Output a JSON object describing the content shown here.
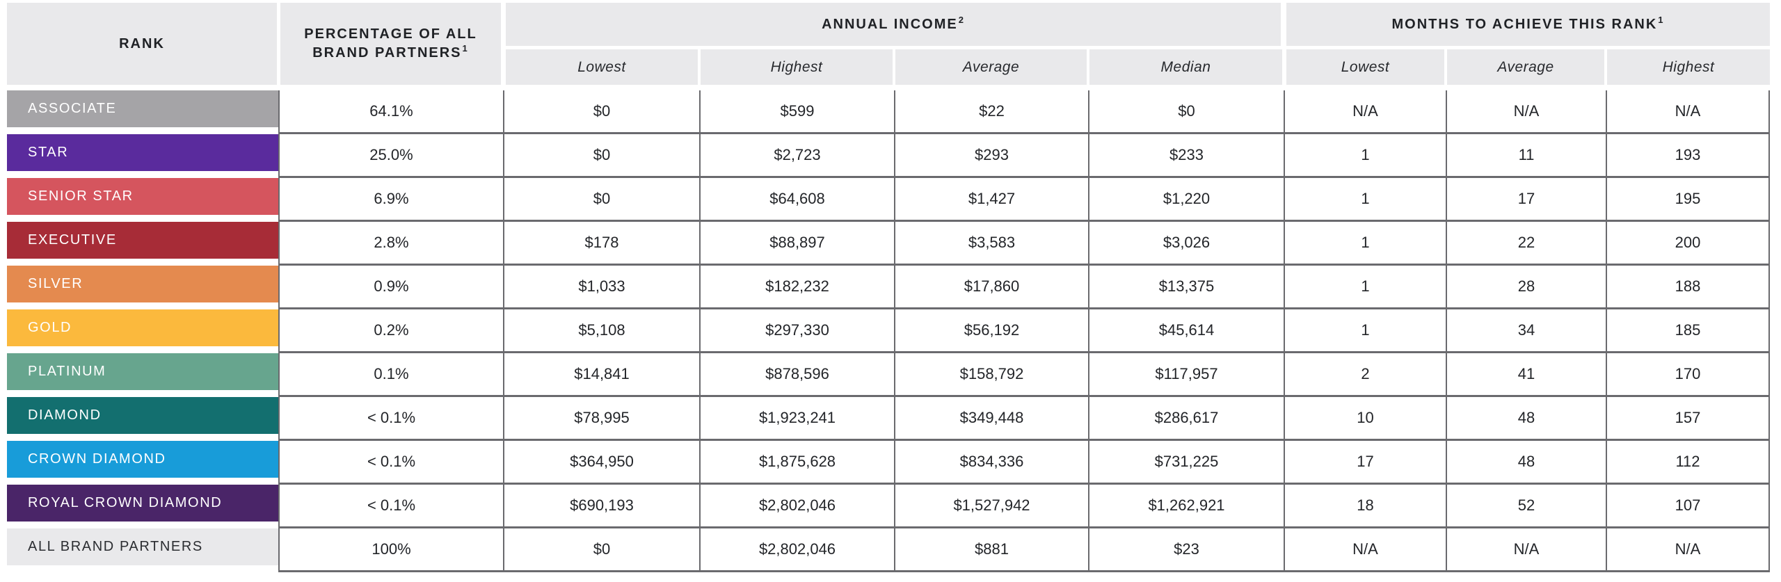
{
  "header": {
    "rank_label": "RANK",
    "percentage_label": "PERCENTAGE OF ALL BRAND PARTNERS",
    "percentage_sup": "1",
    "annual_income_label": "ANNUAL INCOME",
    "annual_income_sup": "2",
    "annual_income_sub": {
      "lowest": "Lowest",
      "highest": "Highest",
      "average": "Average",
      "median": "Median"
    },
    "months_label": "MONTHS TO ACHIEVE THIS RANK",
    "months_sup": "1",
    "months_sub": {
      "lowest": "Lowest",
      "average": "Average",
      "highest": "Highest"
    }
  },
  "colors": {
    "header_bg": "#e9e9eb",
    "grid_line": "#6a6a6e",
    "data_text": "#232529"
  },
  "rows": [
    {
      "rank": "ASSOCIATE",
      "color": "#a5a4a7",
      "label_color": "#ffffff",
      "percentage": "64.1%",
      "income_lowest": "$0",
      "income_highest": "$599",
      "income_average": "$22",
      "income_median": "$0",
      "months_lowest": "N/A",
      "months_average": "N/A",
      "months_highest": "N/A"
    },
    {
      "rank": "STAR",
      "color": "#5a2b9d",
      "label_color": "#ffffff",
      "percentage": "25.0%",
      "income_lowest": "$0",
      "income_highest": "$2,723",
      "income_average": "$293",
      "income_median": "$233",
      "months_lowest": "1",
      "months_average": "11",
      "months_highest": "193"
    },
    {
      "rank": "SENIOR STAR",
      "color": "#d5555e",
      "label_color": "#ffffff",
      "percentage": "6.9%",
      "income_lowest": "$0",
      "income_highest": "$64,608",
      "income_average": "$1,427",
      "income_median": "$1,220",
      "months_lowest": "1",
      "months_average": "17",
      "months_highest": "195"
    },
    {
      "rank": "EXECUTIVE",
      "color": "#a72c37",
      "label_color": "#ffffff",
      "percentage": "2.8%",
      "income_lowest": "$178",
      "income_highest": "$88,897",
      "income_average": "$3,583",
      "income_median": "$3,026",
      "months_lowest": "1",
      "months_average": "22",
      "months_highest": "200"
    },
    {
      "rank": "SILVER",
      "color": "#e48a4f",
      "label_color": "#ffffff",
      "percentage": "0.9%",
      "income_lowest": "$1,033",
      "income_highest": "$182,232",
      "income_average": "$17,860",
      "income_median": "$13,375",
      "months_lowest": "1",
      "months_average": "28",
      "months_highest": "188"
    },
    {
      "rank": "GOLD",
      "color": "#fbb93d",
      "label_color": "#ffffff",
      "percentage": "0.2%",
      "income_lowest": "$5,108",
      "income_highest": "$297,330",
      "income_average": "$56,192",
      "income_median": "$45,614",
      "months_lowest": "1",
      "months_average": "34",
      "months_highest": "185"
    },
    {
      "rank": "PLATINUM",
      "color": "#67a58e",
      "label_color": "#ffffff",
      "percentage": "0.1%",
      "income_lowest": "$14,841",
      "income_highest": "$878,596",
      "income_average": "$158,792",
      "income_median": "$117,957",
      "months_lowest": "2",
      "months_average": "41",
      "months_highest": "170"
    },
    {
      "rank": "DIAMOND",
      "color": "#136f6f",
      "label_color": "#ffffff",
      "percentage": "< 0.1%",
      "income_lowest": "$78,995",
      "income_highest": "$1,923,241",
      "income_average": "$349,448",
      "income_median": "$286,617",
      "months_lowest": "10",
      "months_average": "48",
      "months_highest": "157"
    },
    {
      "rank": "CROWN DIAMOND",
      "color": "#189cd9",
      "label_color": "#ffffff",
      "percentage": "< 0.1%",
      "income_lowest": "$364,950",
      "income_highest": "$1,875,628",
      "income_average": "$834,336",
      "income_median": "$731,225",
      "months_lowest": "17",
      "months_average": "48",
      "months_highest": "112"
    },
    {
      "rank": "ROYAL CROWN DIAMOND",
      "color": "#4a2568",
      "label_color": "#ffffff",
      "percentage": "< 0.1%",
      "income_lowest": "$690,193",
      "income_highest": "$2,802,046",
      "income_average": "$1,527,942",
      "income_median": "$1,262,921",
      "months_lowest": "18",
      "months_average": "52",
      "months_highest": "107"
    },
    {
      "rank": "ALL BRAND PARTNERS",
      "color": "#e9e9eb",
      "label_color": "#2b2d31",
      "percentage": "100%",
      "income_lowest": "$0",
      "income_highest": "$2,802,046",
      "income_average": "$881",
      "income_median": "$23",
      "months_lowest": "N/A",
      "months_average": "N/A",
      "months_highest": "N/A"
    }
  ]
}
